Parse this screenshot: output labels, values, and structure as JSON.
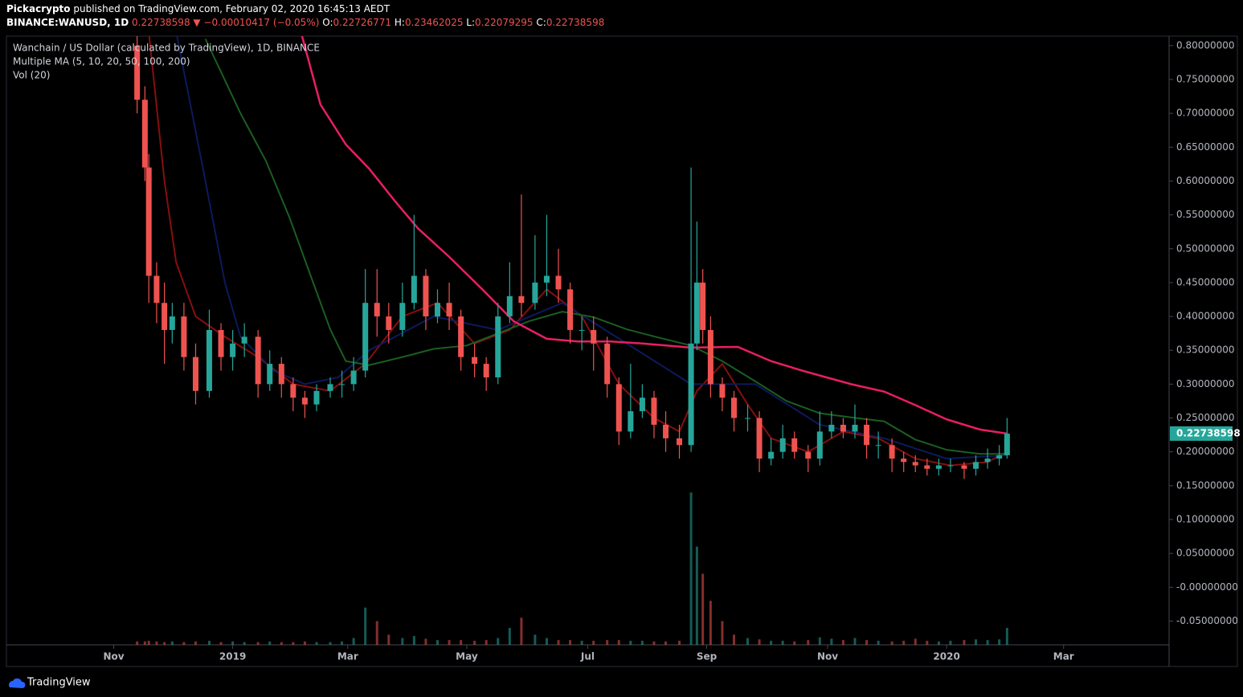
{
  "header": {
    "publisher": "Pickacrypto",
    "published_text": "published on TradingView.com, February 02, 2020 16:45:13 AEDT",
    "symbol": "BINANCE:WANUSD, 1D",
    "last": "0.22738598",
    "change": "▼ −0.00010417 (−0.05%)",
    "ohlc": [
      {
        "label": "O:",
        "value": "0.22726771"
      },
      {
        "label": "H:",
        "value": "0.23462025"
      },
      {
        "label": "L:",
        "value": "0.22079295"
      },
      {
        "label": "C:",
        "value": "0.22738598"
      }
    ]
  },
  "legend": [
    "Wanchain / US Dollar (calculated by TradingView), 1D, BINANCE",
    "Multiple MA (5, 10, 20, 50, 100, 200)",
    "Vol (20)"
  ],
  "footer": "TradingView",
  "chart_data": {
    "type": "candlestick",
    "up_color": "#26a69a",
    "down_color": "#ef5350",
    "grid": false,
    "xlim": [
      -1,
      593
    ],
    "xticks": [
      {
        "value": 54,
        "label": "Nov"
      },
      {
        "value": 115,
        "label": "2019"
      },
      {
        "value": 174,
        "label": "Mar"
      },
      {
        "value": 235,
        "label": "May"
      },
      {
        "value": 297,
        "label": "Jul"
      },
      {
        "value": 358,
        "label": "Sep"
      },
      {
        "value": 420,
        "label": "Nov"
      },
      {
        "value": 481,
        "label": "2020"
      },
      {
        "value": 541,
        "label": "Mar"
      }
    ],
    "ylim": [
      -0.085,
      0.814
    ],
    "yticks": [
      {
        "value": 0.8,
        "label": "0.80000000"
      },
      {
        "value": 0.75,
        "label": "0.75000000"
      },
      {
        "value": 0.7,
        "label": "0.70000000"
      },
      {
        "value": 0.65,
        "label": "0.65000000"
      },
      {
        "value": 0.6,
        "label": "0.60000000"
      },
      {
        "value": 0.55,
        "label": "0.55000000"
      },
      {
        "value": 0.5,
        "label": "0.50000000"
      },
      {
        "value": 0.45,
        "label": "0.45000000"
      },
      {
        "value": 0.4,
        "label": "0.40000000"
      },
      {
        "value": 0.35,
        "label": "0.35000000"
      },
      {
        "value": 0.3,
        "label": "0.30000000"
      },
      {
        "value": 0.25,
        "label": "0.25000000"
      },
      {
        "value": 0.2,
        "label": "0.20000000"
      },
      {
        "value": 0.15,
        "label": "0.15000000"
      },
      {
        "value": 0.1,
        "label": "0.10000000"
      },
      {
        "value": 0.05,
        "label": "0.05000000"
      },
      {
        "value": 0,
        "label": "-0.00000000"
      },
      {
        "value": -0.05,
        "label": "-0.05000000"
      }
    ],
    "x": [
      66,
      70,
      72,
      76,
      80,
      84,
      90,
      96,
      103,
      109,
      115,
      121,
      128,
      134,
      140,
      146,
      152,
      158,
      165,
      171,
      177,
      183,
      189,
      195,
      202,
      208,
      214,
      220,
      226,
      232,
      239,
      245,
      251,
      257,
      263,
      270,
      276,
      282,
      288,
      294,
      300,
      307,
      313,
      319,
      325,
      331,
      337,
      344,
      350,
      353,
      356,
      360,
      366,
      372,
      379,
      385,
      391,
      397,
      403,
      410,
      416,
      422,
      428,
      434,
      440,
      446,
      453,
      459,
      465,
      471,
      477,
      483,
      490,
      496,
      502,
      508,
      512
    ],
    "open": [
      0.8,
      0.72,
      0.62,
      0.46,
      0.42,
      0.38,
      0.4,
      0.34,
      0.29,
      0.38,
      0.34,
      0.36,
      0.37,
      0.3,
      0.33,
      0.3,
      0.28,
      0.27,
      0.29,
      0.3,
      0.3,
      0.32,
      0.42,
      0.4,
      0.38,
      0.42,
      0.46,
      0.4,
      0.42,
      0.4,
      0.34,
      0.33,
      0.31,
      0.4,
      0.43,
      0.42,
      0.45,
      0.46,
      0.44,
      0.38,
      0.38,
      0.36,
      0.3,
      0.23,
      0.26,
      0.28,
      0.24,
      0.22,
      0.21,
      0.36,
      0.45,
      0.38,
      0.3,
      0.28,
      0.25,
      0.25,
      0.19,
      0.2,
      0.22,
      0.2,
      0.19,
      0.23,
      0.24,
      0.23,
      0.24,
      0.21,
      0.21,
      0.19,
      0.185,
      0.18,
      0.175,
      0.18,
      0.18,
      0.175,
      0.185,
      0.19,
      0.195
    ],
    "high": [
      0.82,
      0.74,
      0.64,
      0.48,
      0.45,
      0.42,
      0.42,
      0.36,
      0.41,
      0.39,
      0.38,
      0.39,
      0.38,
      0.35,
      0.34,
      0.31,
      0.29,
      0.3,
      0.31,
      0.32,
      0.34,
      0.47,
      0.47,
      0.42,
      0.45,
      0.55,
      0.47,
      0.44,
      0.45,
      0.41,
      0.36,
      0.34,
      0.42,
      0.48,
      0.58,
      0.52,
      0.55,
      0.5,
      0.45,
      0.4,
      0.4,
      0.37,
      0.31,
      0.33,
      0.3,
      0.29,
      0.26,
      0.24,
      0.62,
      0.54,
      0.47,
      0.4,
      0.31,
      0.29,
      0.27,
      0.26,
      0.22,
      0.24,
      0.23,
      0.21,
      0.26,
      0.26,
      0.25,
      0.27,
      0.25,
      0.23,
      0.22,
      0.2,
      0.195,
      0.19,
      0.19,
      0.19,
      0.185,
      0.195,
      0.205,
      0.21,
      0.25
    ],
    "low": [
      0.7,
      0.6,
      0.42,
      0.39,
      0.33,
      0.36,
      0.32,
      0.27,
      0.28,
      0.32,
      0.32,
      0.34,
      0.28,
      0.29,
      0.28,
      0.26,
      0.25,
      0.26,
      0.28,
      0.28,
      0.29,
      0.31,
      0.37,
      0.36,
      0.37,
      0.41,
      0.38,
      0.39,
      0.38,
      0.32,
      0.31,
      0.29,
      0.3,
      0.39,
      0.4,
      0.41,
      0.43,
      0.42,
      0.36,
      0.35,
      0.32,
      0.28,
      0.21,
      0.22,
      0.25,
      0.22,
      0.2,
      0.19,
      0.2,
      0.35,
      0.36,
      0.28,
      0.26,
      0.23,
      0.23,
      0.17,
      0.18,
      0.19,
      0.19,
      0.17,
      0.18,
      0.22,
      0.22,
      0.22,
      0.19,
      0.19,
      0.17,
      0.17,
      0.17,
      0.165,
      0.165,
      0.17,
      0.16,
      0.165,
      0.175,
      0.18,
      0.19
    ],
    "close": [
      0.72,
      0.62,
      0.46,
      0.42,
      0.38,
      0.4,
      0.34,
      0.29,
      0.38,
      0.34,
      0.36,
      0.37,
      0.3,
      0.33,
      0.3,
      0.28,
      0.27,
      0.29,
      0.3,
      0.3,
      0.32,
      0.42,
      0.4,
      0.38,
      0.42,
      0.46,
      0.4,
      0.42,
      0.4,
      0.34,
      0.33,
      0.31,
      0.4,
      0.43,
      0.42,
      0.45,
      0.46,
      0.44,
      0.38,
      0.38,
      0.36,
      0.3,
      0.23,
      0.26,
      0.28,
      0.24,
      0.22,
      0.21,
      0.36,
      0.45,
      0.38,
      0.3,
      0.28,
      0.25,
      0.25,
      0.19,
      0.2,
      0.22,
      0.2,
      0.19,
      0.23,
      0.24,
      0.23,
      0.24,
      0.21,
      0.21,
      0.19,
      0.185,
      0.18,
      0.175,
      0.18,
      0.18,
      0.175,
      0.185,
      0.19,
      0.195,
      0.227
    ],
    "volume": [
      -0.08,
      -0.08,
      -0.079,
      -0.08,
      -0.081,
      -0.08,
      -0.081,
      -0.08,
      -0.079,
      -0.081,
      -0.08,
      -0.081,
      -0.081,
      -0.08,
      -0.081,
      -0.081,
      -0.08,
      -0.081,
      -0.081,
      -0.08,
      -0.075,
      -0.03,
      -0.05,
      -0.07,
      -0.075,
      -0.072,
      -0.076,
      -0.078,
      -0.078,
      -0.078,
      -0.079,
      -0.078,
      -0.075,
      -0.06,
      -0.045,
      -0.07,
      -0.075,
      -0.078,
      -0.078,
      -0.079,
      -0.079,
      -0.078,
      -0.078,
      -0.079,
      -0.079,
      -0.08,
      -0.08,
      -0.079,
      0.14,
      0.06,
      0.02,
      -0.02,
      -0.05,
      -0.07,
      -0.075,
      -0.077,
      -0.079,
      -0.079,
      -0.08,
      -0.078,
      -0.074,
      -0.076,
      -0.078,
      -0.075,
      -0.078,
      -0.079,
      -0.08,
      -0.079,
      -0.076,
      -0.079,
      -0.08,
      -0.079,
      -0.078,
      -0.077,
      -0.078,
      -0.077,
      -0.06
    ],
    "series": [
      {
        "color": "#880e0e",
        "x": [
          72,
          80,
          86,
          96,
          111,
          128,
          146,
          165,
          183,
          202,
          220,
          239,
          257,
          276,
          294,
          313,
          331,
          344,
          353,
          366,
          379,
          391,
          410,
          428,
          446,
          465,
          483,
          502,
          512
        ],
        "values": [
          0.82,
          0.6,
          0.48,
          0.4,
          0.37,
          0.34,
          0.3,
          0.29,
          0.33,
          0.4,
          0.42,
          0.36,
          0.38,
          0.44,
          0.4,
          0.3,
          0.25,
          0.23,
          0.29,
          0.33,
          0.27,
          0.22,
          0.2,
          0.23,
          0.22,
          0.19,
          0.18,
          0.185,
          0.2
        ]
      },
      {
        "color": "#0c1a5c",
        "x": [
          86,
          99,
          111,
          119,
          136,
          152,
          169,
          185,
          218,
          251,
          284,
          317,
          350,
          383,
          416,
          449,
          481,
          512
        ],
        "values": [
          0.82,
          0.63,
          0.45,
          0.37,
          0.32,
          0.3,
          0.31,
          0.35,
          0.4,
          0.38,
          0.42,
          0.36,
          0.3,
          0.3,
          0.24,
          0.22,
          0.19,
          0.195
        ]
      },
      {
        "color": "#1b5e20",
        "x": [
          101,
          111,
          119,
          132,
          144,
          156,
          165,
          173,
          185,
          202,
          218,
          235,
          251,
          267,
          284,
          300,
          317,
          333,
          350,
          366,
          383,
          399,
          416,
          432,
          449,
          465,
          481,
          498,
          512
        ],
        "values": [
          0.81,
          0.749,
          0.7,
          0.63,
          0.547,
          0.452,
          0.381,
          0.334,
          0.328,
          0.34,
          0.352,
          0.357,
          0.375,
          0.393,
          0.407,
          0.399,
          0.381,
          0.369,
          0.357,
          0.334,
          0.304,
          0.275,
          0.257,
          0.251,
          0.245,
          0.218,
          0.203,
          0.197,
          0.197
        ]
      },
      {
        "color": "#e91e63",
        "x": [
          150,
          160,
          173,
          185,
          198,
          210,
          226,
          243,
          259,
          276,
          292,
          309,
          325,
          350,
          374,
          391,
          407,
          432,
          449,
          465,
          481,
          498,
          512
        ],
        "values": [
          0.82,
          0.713,
          0.654,
          0.618,
          0.571,
          0.53,
          0.488,
          0.44,
          0.393,
          0.367,
          0.363,
          0.363,
          0.36,
          0.354,
          0.355,
          0.334,
          0.32,
          0.3,
          0.289,
          0.269,
          0.248,
          0.233,
          0.227
        ]
      }
    ]
  }
}
